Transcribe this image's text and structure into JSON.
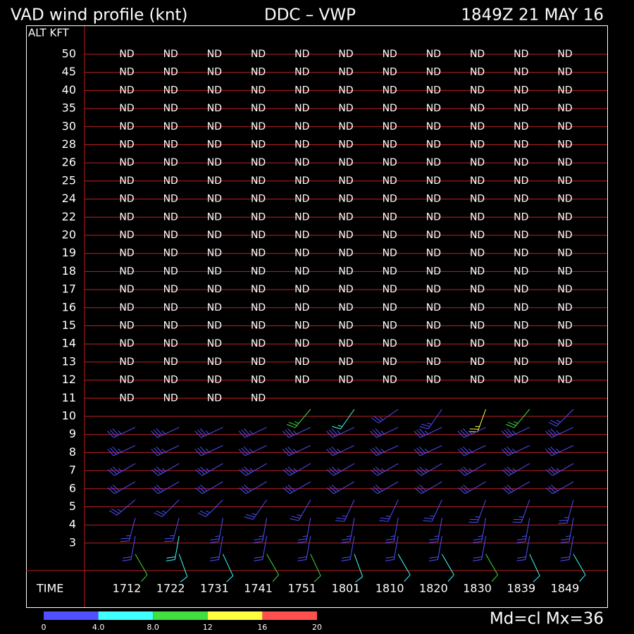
{
  "header": {
    "title": "VAD wind profile (knt)",
    "site": "DDC – VWP",
    "time": "1849Z 21 MAY 16"
  },
  "alt_label": "ALT KFT",
  "time_label": "TIME",
  "levels": [
    50,
    45,
    40,
    35,
    30,
    28,
    26,
    25,
    24,
    22,
    20,
    19,
    18,
    17,
    16,
    15,
    14,
    13,
    12,
    11,
    10,
    9,
    8,
    7,
    6,
    5,
    4,
    3
  ],
  "columns": [
    {
      "time": "1712",
      "nd": [
        "ND",
        "ND",
        "ND",
        "ND",
        "ND",
        "ND",
        "ND",
        "ND",
        "ND",
        "ND",
        "ND",
        "ND",
        "ND",
        "ND",
        "ND",
        "ND",
        "ND",
        "ND",
        "ND",
        "ND"
      ],
      "barbs": [
        {
          "alt": 9,
          "dir": 245,
          "kt": 35,
          "rms": 2
        },
        {
          "alt": 8,
          "dir": 245,
          "kt": 35,
          "rms": 2
        },
        {
          "alt": 7,
          "dir": 240,
          "kt": 35,
          "rms": 2
        },
        {
          "alt": 6,
          "dir": 240,
          "kt": 30,
          "rms": 2
        },
        {
          "alt": 5,
          "dir": 230,
          "kt": 25,
          "rms": 2
        },
        {
          "alt": 4,
          "dir": 195,
          "kt": 25,
          "rms": 2
        },
        {
          "alt": 3,
          "dir": 190,
          "kt": 20,
          "rms": 3
        },
        {
          "alt": 2,
          "dir": 150,
          "kt": 10,
          "rms": 9
        }
      ]
    },
    {
      "time": "1722",
      "nd": [
        "ND",
        "ND",
        "ND",
        "ND",
        "ND",
        "ND",
        "ND",
        "ND",
        "ND",
        "ND",
        "ND",
        "ND",
        "ND",
        "ND",
        "ND",
        "ND",
        "ND",
        "ND",
        "ND",
        "ND"
      ],
      "barbs": [
        {
          "alt": 9,
          "dir": 245,
          "kt": 35,
          "rms": 2
        },
        {
          "alt": 8,
          "dir": 245,
          "kt": 35,
          "rms": 2
        },
        {
          "alt": 7,
          "dir": 240,
          "kt": 35,
          "rms": 2
        },
        {
          "alt": 6,
          "dir": 240,
          "kt": 30,
          "rms": 2
        },
        {
          "alt": 5,
          "dir": 225,
          "kt": 25,
          "rms": 2
        },
        {
          "alt": 4,
          "dir": 195,
          "kt": 25,
          "rms": 2
        },
        {
          "alt": 3,
          "dir": 190,
          "kt": 20,
          "rms": 5
        },
        {
          "alt": 2,
          "dir": 160,
          "kt": 10,
          "rms": 6
        }
      ]
    },
    {
      "time": "1731",
      "nd": [
        "ND",
        "ND",
        "ND",
        "ND",
        "ND",
        "ND",
        "ND",
        "ND",
        "ND",
        "ND",
        "ND",
        "ND",
        "ND",
        "ND",
        "ND",
        "ND",
        "ND",
        "ND",
        "ND",
        "ND"
      ],
      "barbs": [
        {
          "alt": 9,
          "dir": 245,
          "kt": 35,
          "rms": 2
        },
        {
          "alt": 8,
          "dir": 245,
          "kt": 35,
          "rms": 2
        },
        {
          "alt": 7,
          "dir": 240,
          "kt": 35,
          "rms": 2
        },
        {
          "alt": 6,
          "dir": 240,
          "kt": 30,
          "rms": 2
        },
        {
          "alt": 5,
          "dir": 225,
          "kt": 25,
          "rms": 2
        },
        {
          "alt": 4,
          "dir": 190,
          "kt": 25,
          "rms": 2
        },
        {
          "alt": 3,
          "dir": 190,
          "kt": 20,
          "rms": 3
        },
        {
          "alt": 2,
          "dir": 155,
          "kt": 10,
          "rms": 6
        }
      ]
    },
    {
      "time": "1741",
      "nd": [
        "ND",
        "ND",
        "ND",
        "ND",
        "ND",
        "ND",
        "ND",
        "ND",
        "ND",
        "ND",
        "ND",
        "ND",
        "ND",
        "ND",
        "ND",
        "ND",
        "ND",
        "ND",
        "ND",
        "ND"
      ],
      "barbs": [
        {
          "alt": 9,
          "dir": 245,
          "kt": 35,
          "rms": 2
        },
        {
          "alt": 8,
          "dir": 245,
          "kt": 35,
          "rms": 2
        },
        {
          "alt": 7,
          "dir": 240,
          "kt": 35,
          "rms": 2
        },
        {
          "alt": 6,
          "dir": 240,
          "kt": 30,
          "rms": 2
        },
        {
          "alt": 5,
          "dir": 215,
          "kt": 25,
          "rms": 2
        },
        {
          "alt": 4,
          "dir": 190,
          "kt": 25,
          "rms": 2
        },
        {
          "alt": 3,
          "dir": 190,
          "kt": 20,
          "rms": 3
        },
        {
          "alt": 2,
          "dir": 150,
          "kt": 10,
          "rms": 9
        }
      ]
    },
    {
      "time": "1751",
      "nd": [
        "ND",
        "ND",
        "ND",
        "ND",
        "ND",
        "ND",
        "ND",
        "ND",
        "ND",
        "ND",
        "ND",
        "ND",
        "ND",
        "ND",
        "ND",
        "ND",
        "ND",
        "ND",
        "ND"
      ],
      "barbs": [
        {
          "alt": 10,
          "dir": 220,
          "kt": 25,
          "rms": 9
        },
        {
          "alt": 9,
          "dir": 245,
          "kt": 35,
          "rms": 2
        },
        {
          "alt": 8,
          "dir": 245,
          "kt": 35,
          "rms": 2
        },
        {
          "alt": 7,
          "dir": 240,
          "kt": 35,
          "rms": 2
        },
        {
          "alt": 6,
          "dir": 240,
          "kt": 30,
          "rms": 2
        },
        {
          "alt": 5,
          "dir": 210,
          "kt": 25,
          "rms": 2
        },
        {
          "alt": 4,
          "dir": 190,
          "kt": 25,
          "rms": 2
        },
        {
          "alt": 3,
          "dir": 190,
          "kt": 20,
          "rms": 3
        },
        {
          "alt": 2,
          "dir": 155,
          "kt": 10,
          "rms": 9
        }
      ]
    },
    {
      "time": "1801",
      "nd": [
        "ND",
        "ND",
        "ND",
        "ND",
        "ND",
        "ND",
        "ND",
        "ND",
        "ND",
        "ND",
        "ND",
        "ND",
        "ND",
        "ND",
        "ND",
        "ND",
        "ND",
        "ND",
        "ND"
      ],
      "barbs": [
        {
          "alt": 10,
          "dir": 215,
          "kt": 15,
          "rms": 6
        },
        {
          "alt": 9,
          "dir": 245,
          "kt": 35,
          "rms": 2
        },
        {
          "alt": 8,
          "dir": 245,
          "kt": 35,
          "rms": 2
        },
        {
          "alt": 7,
          "dir": 240,
          "kt": 35,
          "rms": 2
        },
        {
          "alt": 6,
          "dir": 240,
          "kt": 30,
          "rms": 2
        },
        {
          "alt": 5,
          "dir": 205,
          "kt": 25,
          "rms": 2
        },
        {
          "alt": 4,
          "dir": 190,
          "kt": 25,
          "rms": 2
        },
        {
          "alt": 3,
          "dir": 190,
          "kt": 20,
          "rms": 3
        },
        {
          "alt": 2,
          "dir": 160,
          "kt": 10,
          "rms": 6
        }
      ]
    },
    {
      "time": "1810",
      "nd": [
        "ND",
        "ND",
        "ND",
        "ND",
        "ND",
        "ND",
        "ND",
        "ND",
        "ND",
        "ND",
        "ND",
        "ND",
        "ND",
        "ND",
        "ND",
        "ND",
        "ND",
        "ND",
        "ND"
      ],
      "barbs": [
        {
          "alt": 10,
          "dir": 235,
          "kt": 25,
          "rms": 2
        },
        {
          "alt": 9,
          "dir": 245,
          "kt": 35,
          "rms": 2
        },
        {
          "alt": 8,
          "dir": 245,
          "kt": 35,
          "rms": 2
        },
        {
          "alt": 7,
          "dir": 240,
          "kt": 35,
          "rms": 2
        },
        {
          "alt": 6,
          "dir": 240,
          "kt": 30,
          "rms": 2
        },
        {
          "alt": 5,
          "dir": 205,
          "kt": 25,
          "rms": 2
        },
        {
          "alt": 4,
          "dir": 190,
          "kt": 25,
          "rms": 2
        },
        {
          "alt": 3,
          "dir": 190,
          "kt": 20,
          "rms": 3
        },
        {
          "alt": 2,
          "dir": 150,
          "kt": 10,
          "rms": 6
        }
      ]
    },
    {
      "time": "1820",
      "nd": [
        "ND",
        "ND",
        "ND",
        "ND",
        "ND",
        "ND",
        "ND",
        "ND",
        "ND",
        "ND",
        "ND",
        "ND",
        "ND",
        "ND",
        "ND",
        "ND",
        "ND",
        "ND",
        "ND"
      ],
      "barbs": [
        {
          "alt": 10,
          "dir": 215,
          "kt": 25,
          "rms": 2
        },
        {
          "alt": 9,
          "dir": 245,
          "kt": 35,
          "rms": 2
        },
        {
          "alt": 8,
          "dir": 245,
          "kt": 35,
          "rms": 2
        },
        {
          "alt": 7,
          "dir": 240,
          "kt": 35,
          "rms": 2
        },
        {
          "alt": 6,
          "dir": 240,
          "kt": 30,
          "rms": 2
        },
        {
          "alt": 5,
          "dir": 205,
          "kt": 25,
          "rms": 2
        },
        {
          "alt": 4,
          "dir": 190,
          "kt": 25,
          "rms": 2
        },
        {
          "alt": 3,
          "dir": 190,
          "kt": 20,
          "rms": 3
        },
        {
          "alt": 2,
          "dir": 150,
          "kt": 10,
          "rms": 6
        }
      ]
    },
    {
      "time": "1830",
      "nd": [
        "ND",
        "ND",
        "ND",
        "ND",
        "ND",
        "ND",
        "ND",
        "ND",
        "ND",
        "ND",
        "ND",
        "ND",
        "ND",
        "ND",
        "ND",
        "ND",
        "ND",
        "ND",
        "ND"
      ],
      "barbs": [
        {
          "alt": 10,
          "dir": 200,
          "kt": 25,
          "rms": 14
        },
        {
          "alt": 9,
          "dir": 245,
          "kt": 35,
          "rms": 2
        },
        {
          "alt": 8,
          "dir": 245,
          "kt": 35,
          "rms": 2
        },
        {
          "alt": 7,
          "dir": 240,
          "kt": 35,
          "rms": 2
        },
        {
          "alt": 6,
          "dir": 240,
          "kt": 30,
          "rms": 2
        },
        {
          "alt": 5,
          "dir": 200,
          "kt": 25,
          "rms": 2
        },
        {
          "alt": 4,
          "dir": 190,
          "kt": 25,
          "rms": 2
        },
        {
          "alt": 3,
          "dir": 190,
          "kt": 20,
          "rms": 3
        },
        {
          "alt": 2,
          "dir": 150,
          "kt": 10,
          "rms": 9
        }
      ]
    },
    {
      "time": "1839",
      "nd": [
        "ND",
        "ND",
        "ND",
        "ND",
        "ND",
        "ND",
        "ND",
        "ND",
        "ND",
        "ND",
        "ND",
        "ND",
        "ND",
        "ND",
        "ND",
        "ND",
        "ND",
        "ND",
        "ND"
      ],
      "barbs": [
        {
          "alt": 10,
          "dir": 220,
          "kt": 25,
          "rms": 9
        },
        {
          "alt": 9,
          "dir": 245,
          "kt": 35,
          "rms": 2
        },
        {
          "alt": 8,
          "dir": 245,
          "kt": 35,
          "rms": 2
        },
        {
          "alt": 7,
          "dir": 240,
          "kt": 35,
          "rms": 2
        },
        {
          "alt": 6,
          "dir": 240,
          "kt": 30,
          "rms": 2
        },
        {
          "alt": 5,
          "dir": 200,
          "kt": 25,
          "rms": 2
        },
        {
          "alt": 4,
          "dir": 190,
          "kt": 25,
          "rms": 2
        },
        {
          "alt": 3,
          "dir": 190,
          "kt": 20,
          "rms": 3
        },
        {
          "alt": 2,
          "dir": 155,
          "kt": 10,
          "rms": 6
        }
      ]
    },
    {
      "time": "1849",
      "nd": [
        "ND",
        "ND",
        "ND",
        "ND",
        "ND",
        "ND",
        "ND",
        "ND",
        "ND",
        "ND",
        "ND",
        "ND",
        "ND",
        "ND",
        "ND",
        "ND",
        "ND",
        "ND",
        "ND"
      ],
      "barbs": [
        {
          "alt": 10,
          "dir": 225,
          "kt": 25,
          "rms": 2
        },
        {
          "alt": 9,
          "dir": 245,
          "kt": 35,
          "rms": 2
        },
        {
          "alt": 8,
          "dir": 245,
          "kt": 35,
          "rms": 2
        },
        {
          "alt": 7,
          "dir": 240,
          "kt": 35,
          "rms": 2
        },
        {
          "alt": 6,
          "dir": 240,
          "kt": 30,
          "rms": 2
        },
        {
          "alt": 5,
          "dir": 195,
          "kt": 25,
          "rms": 2
        },
        {
          "alt": 4,
          "dir": 190,
          "kt": 25,
          "rms": 2
        },
        {
          "alt": 3,
          "dir": 190,
          "kt": 20,
          "rms": 3
        },
        {
          "alt": 2,
          "dir": 150,
          "kt": 10,
          "rms": 6
        }
      ]
    }
  ],
  "color_scale": {
    "ticks": [
      0,
      {
        "value": 4,
        "label": "4.0"
      },
      {
        "value": 8,
        "label": "8.0"
      },
      12,
      16,
      20
    ],
    "colors": [
      "#5050ff",
      "#40ffff",
      "#40e040",
      "#ffff40",
      "#ff5050"
    ]
  },
  "mode": "Md=cl Mx=36"
}
